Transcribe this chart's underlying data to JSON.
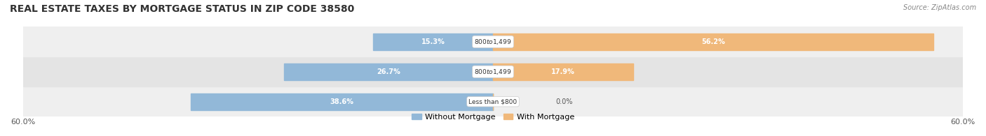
{
  "title": "REAL ESTATE TAXES BY MORTGAGE STATUS IN ZIP CODE 38580",
  "source": "Source: ZipAtlas.com",
  "rows": [
    {
      "label_center": "Less than $800",
      "without_pct": 38.6,
      "with_pct": 0.0
    },
    {
      "label_center": "$800 to $1,499",
      "without_pct": 26.7,
      "with_pct": 17.9
    },
    {
      "label_center": "$800 to $1,499",
      "without_pct": 15.3,
      "with_pct": 56.2
    }
  ],
  "axis_label_left": "60.0%",
  "axis_label_right": "60.0%",
  "max_val": 60.0,
  "color_without": "#92b8d8",
  "color_with": "#f0b87a",
  "legend_without": "Without Mortgage",
  "legend_with": "With Mortgage",
  "title_fontsize": 10,
  "bar_height": 0.55
}
